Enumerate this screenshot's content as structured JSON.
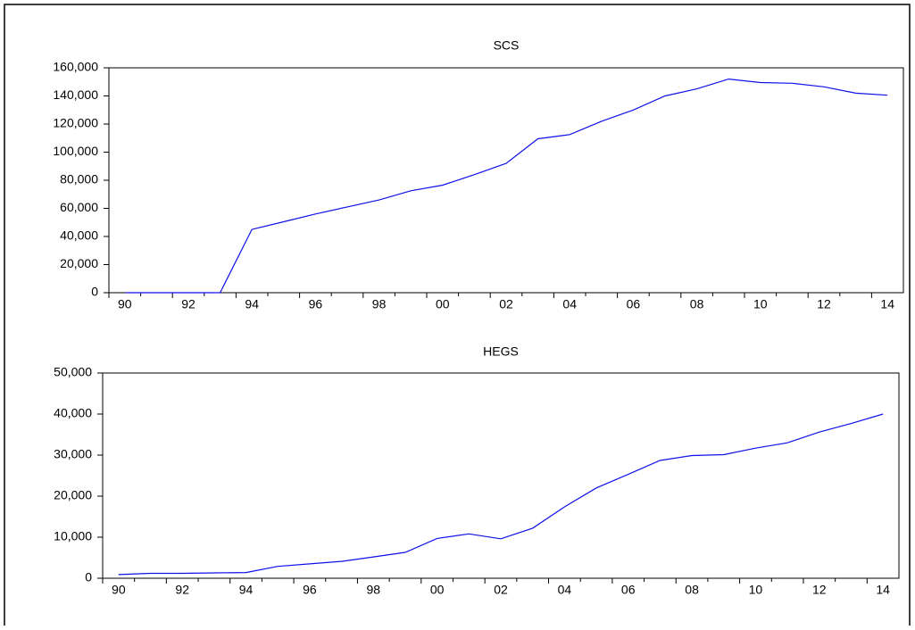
{
  "chart_data": [
    {
      "type": "line",
      "title": "SCS",
      "categories": [
        "90",
        null,
        "92",
        null,
        "94",
        null,
        "96",
        null,
        "98",
        null,
        "00",
        null,
        "02",
        null,
        "04",
        null,
        "06",
        null,
        "08",
        null,
        "10",
        null,
        "12",
        null,
        "14"
      ],
      "values": [
        0,
        0,
        0,
        0,
        45000,
        50500,
        56000,
        61000,
        66000,
        72500,
        76500,
        84000,
        92000,
        109500,
        112500,
        122000,
        130000,
        140000,
        145000,
        152000,
        149500,
        149000,
        146500,
        142000,
        140500
      ],
      "color": "#1010e8",
      "ylim": [
        0,
        160000
      ],
      "yticks": [
        0,
        {
          "value": 20000,
          "label": "20,000"
        },
        {
          "value": 40000,
          "label": "40,000"
        },
        {
          "value": 60000,
          "label": "60,000"
        },
        {
          "value": 80000,
          "label": "80,000"
        },
        {
          "value": 100000,
          "label": "100,000"
        },
        {
          "value": 120000,
          "label": "120,000"
        },
        {
          "value": 140000,
          "label": "140,000"
        },
        {
          "value": 160000,
          "label": "160,000"
        }
      ]
    },
    {
      "type": "line",
      "title": "HEGS",
      "categories": [
        "90",
        null,
        "92",
        null,
        "94",
        null,
        "96",
        null,
        "98",
        null,
        "00",
        null,
        "02",
        null,
        "04",
        null,
        "06",
        null,
        "08",
        null,
        "10",
        null,
        "12",
        null,
        "14"
      ],
      "values": [
        900,
        1200,
        1200,
        1300,
        1400,
        2900,
        3500,
        4100,
        5200,
        6300,
        9700,
        10800,
        9600,
        12200,
        17400,
        22000,
        25300,
        28700,
        29900,
        30100,
        31700,
        33000,
        35600,
        37700,
        40000
      ],
      "color": "#1010e8",
      "ylim": [
        0,
        50000
      ],
      "yticks": [
        0,
        {
          "value": 10000,
          "label": "10,000"
        },
        {
          "value": 20000,
          "label": "20,000"
        },
        {
          "value": 30000,
          "label": "30,000"
        },
        {
          "value": 40000,
          "label": "40,000"
        },
        {
          "value": 50000,
          "label": "50,000"
        }
      ]
    }
  ]
}
